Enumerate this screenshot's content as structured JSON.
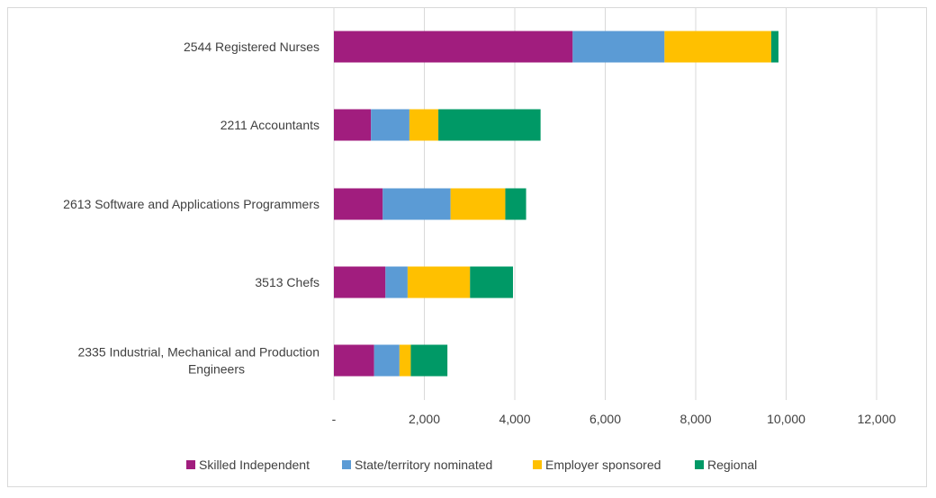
{
  "chart_data": {
    "type": "bar",
    "orientation": "horizontal",
    "stacked": true,
    "title": "",
    "xlabel": "",
    "ylabel": "",
    "xlim": [
      0,
      12000
    ],
    "grid": true,
    "legend_position": "bottom",
    "categories": [
      [
        "2544 Registered Nurses"
      ],
      [
        "2211 Accountants"
      ],
      [
        "2613 Software and Applications Programmers"
      ],
      [
        "3513 Chefs"
      ],
      [
        "2335 Industrial, Mechanical and Production",
        "Engineers"
      ]
    ],
    "x_ticks": [
      0,
      2000,
      4000,
      6000,
      8000,
      10000,
      12000
    ],
    "x_tick_labels": [
      "-",
      "2,000",
      "4,000",
      "6,000",
      "8,000",
      "10,000",
      "12,000"
    ],
    "series": [
      {
        "name": "Skilled Independent",
        "color": "#a11d7e",
        "values": [
          5280,
          820,
          1080,
          1140,
          890
        ]
      },
      {
        "name": "State/territory nominated",
        "color": "#5b9bd5",
        "values": [
          2030,
          850,
          1500,
          490,
          560
        ]
      },
      {
        "name": "Employer sponsored",
        "color": "#ffc000",
        "values": [
          2360,
          640,
          1210,
          1380,
          250
        ]
      },
      {
        "name": "Regional",
        "color": "#009966",
        "values": [
          160,
          2260,
          460,
          950,
          810
        ]
      }
    ]
  }
}
